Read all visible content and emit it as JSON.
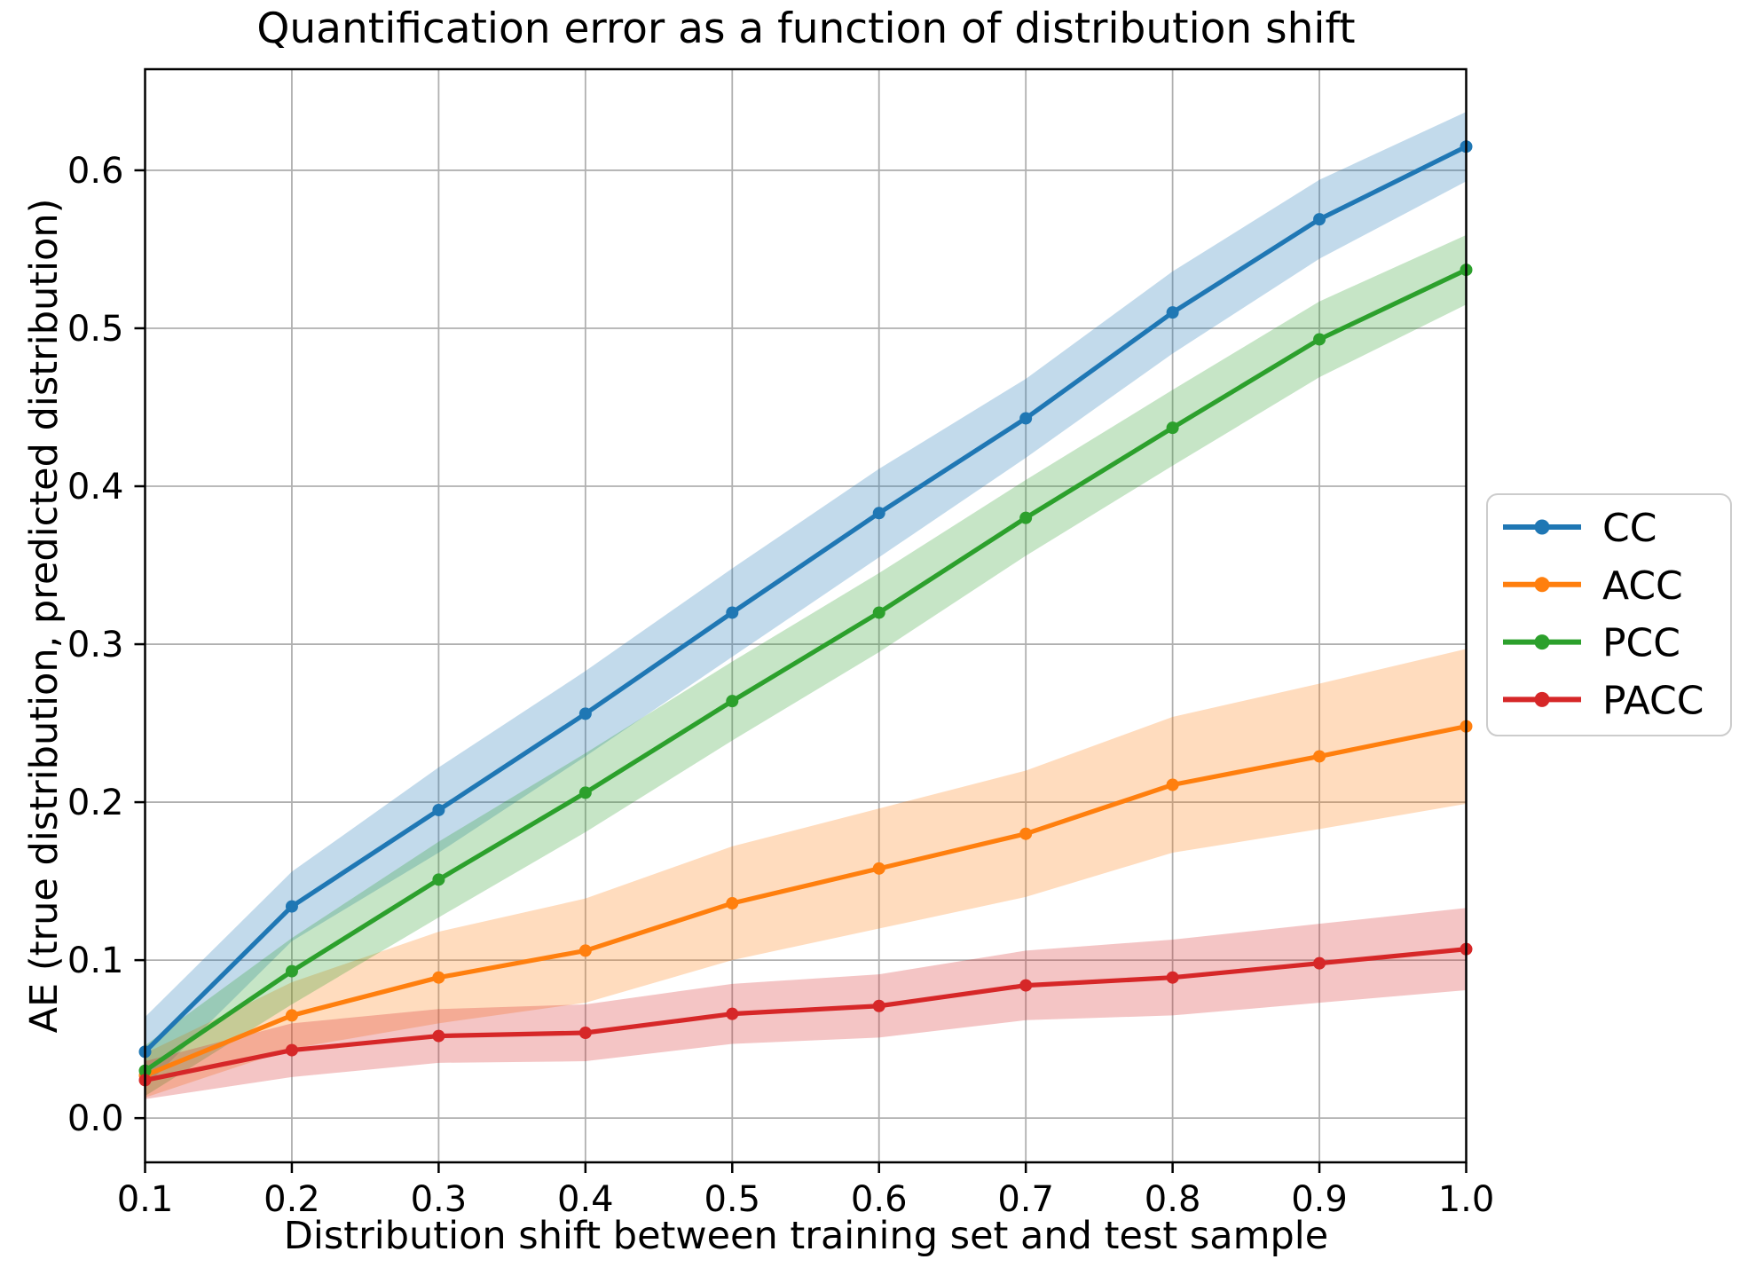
{
  "title": "Quantification error as a function of distribution shift",
  "figure": {
    "background": "#ffffff",
    "grid_color": "#b0b0b0",
    "spine_color": "#000000",
    "text_color": "#000000",
    "legend_border_color": "#cccccc"
  },
  "chart_data": {
    "type": "line",
    "title": "Quantification error as a function of distribution shift",
    "xlabel": "Distribution shift between training set and test sample",
    "ylabel": "AE (true distribution, predicted distribution)",
    "x": [
      0.1,
      0.2,
      0.3,
      0.4,
      0.5,
      0.6,
      0.7,
      0.8,
      0.9,
      1.0
    ],
    "series": [
      {
        "name": "CC",
        "color": "#1f77b4",
        "values": [
          0.042,
          0.134,
          0.195,
          0.256,
          0.32,
          0.383,
          0.443,
          0.51,
          0.569,
          0.615
        ],
        "band_halfwidth": [
          0.022,
          0.022,
          0.027,
          0.027,
          0.028,
          0.028,
          0.025,
          0.026,
          0.025,
          0.022
        ]
      },
      {
        "name": "ACC",
        "color": "#ff7f0e",
        "values": [
          0.027,
          0.065,
          0.089,
          0.106,
          0.136,
          0.158,
          0.18,
          0.211,
          0.229,
          0.248
        ],
        "band_halfwidth": [
          0.014,
          0.021,
          0.029,
          0.033,
          0.036,
          0.038,
          0.04,
          0.043,
          0.046,
          0.049
        ]
      },
      {
        "name": "PCC",
        "color": "#2ca02c",
        "values": [
          0.03,
          0.093,
          0.151,
          0.206,
          0.264,
          0.32,
          0.38,
          0.437,
          0.493,
          0.537
        ],
        "band_halfwidth": [
          0.016,
          0.021,
          0.024,
          0.025,
          0.025,
          0.025,
          0.024,
          0.024,
          0.024,
          0.022
        ]
      },
      {
        "name": "PACC",
        "color": "#d62728",
        "values": [
          0.024,
          0.043,
          0.052,
          0.054,
          0.066,
          0.071,
          0.084,
          0.089,
          0.098,
          0.107
        ],
        "band_halfwidth": [
          0.012,
          0.017,
          0.017,
          0.018,
          0.019,
          0.02,
          0.022,
          0.024,
          0.025,
          0.026
        ]
      }
    ],
    "xticks": {
      "values": [
        0.1,
        0.2,
        0.3,
        0.4,
        0.5,
        0.6,
        0.7,
        0.8,
        0.9,
        1.0
      ],
      "labels": [
        "0.1",
        "0.2",
        "0.3",
        "0.4",
        "0.5",
        "0.6",
        "0.7",
        "0.8",
        "0.9",
        "1.0"
      ]
    },
    "yticks": {
      "values": [
        0.0,
        0.1,
        0.2,
        0.3,
        0.4,
        0.5,
        0.6
      ],
      "labels": [
        "0.0",
        "0.1",
        "0.2",
        "0.3",
        "0.4",
        "0.5",
        "0.6"
      ]
    },
    "xlim": [
      0.1,
      1.0
    ],
    "ylim": [
      -0.028,
      0.664
    ],
    "grid": true,
    "band_opacity": 0.27,
    "legend": {
      "position": "outside-right",
      "entries": [
        "CC",
        "ACC",
        "PCC",
        "PACC"
      ]
    }
  }
}
